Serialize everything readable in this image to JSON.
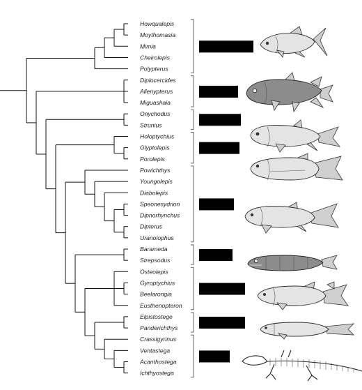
{
  "taxa": [
    "Howqualepis",
    "Moythomasia",
    "Mimia",
    "Cheirolepis",
    "Polypterus",
    "Diplocercides",
    "Allenypterus",
    "Miguashaia",
    "Onychodus",
    "Strunius",
    "Holoptychius",
    "Glyptolepis",
    "Porolepis",
    "Powichthys",
    "Youngolepis",
    "Diabolepis",
    "Speonesydrion",
    "Dipnorhynchus",
    "Dipterus",
    "Uranolophus",
    "Barameda",
    "Strepsodus",
    "Osteolepis",
    "Gyroptychius",
    "Beelarongia",
    "Eusthenopteron",
    "Elpistostege",
    "Panderichthys",
    "Crassigyrinus",
    "Ventastega",
    "Acanthostega",
    "Ichthyostega"
  ],
  "groups": [
    {
      "from": 0,
      "to": 4,
      "label": "",
      "icon": "actinopterygian-fish-icon"
    },
    {
      "from": 5,
      "to": 7,
      "label": "",
      "icon": "coelacanth-fish-icon"
    },
    {
      "from": 8,
      "to": 9,
      "label": "",
      "icon": "onychodont-fish-icon"
    },
    {
      "from": 10,
      "to": 12,
      "label": "",
      "icon": "porolepiform-fish-icon"
    },
    {
      "from": 13,
      "to": 19,
      "label": "",
      "icon": "lungfish-icon"
    },
    {
      "from": 20,
      "to": 21,
      "label": "",
      "icon": "rhizodont-fish-icon"
    },
    {
      "from": 22,
      "to": 25,
      "label": "",
      "icon": "osteolepiform-fish-icon"
    },
    {
      "from": 26,
      "to": 27,
      "label": "",
      "icon": "elpistostegid-fish-icon"
    },
    {
      "from": 28,
      "to": 31,
      "label": "",
      "icon": "early-tetrapod-skeleton-icon"
    }
  ],
  "tree": {
    "c": [
      {
        "c": [
          {
            "c": [
              {
                "c": [
                  {
                    "c": [
                      0,
                      1
                    ]
                  },
                  2
                ]
              },
              3
            ]
          },
          4
        ]
      },
      {
        "c": [
          {
            "c": [
              5,
              6,
              7
            ]
          },
          {
            "c": [
              {
                "c": [
                  8,
                  9
                ]
              },
              {
                "c": [
                  {
                    "c": [
                      10,
                      {
                        "c": [
                          11,
                          12
                        ]
                      }
                    ]
                  },
                  {
                    "c": [
                      {
                        "c": [
                          13,
                          {
                            "c": [
                              14,
                              {
                                "c": [
                                  15,
                                  {
                                    "c": [
                                      {
                                        "c": [
                                          16,
                                          17
                                        ]
                                      },
                                      {
                                        "c": [
                                          18,
                                          19
                                        ]
                                      }
                                    ]
                                  }
                                ]
                              }
                            ]
                          }
                        ]
                      },
                      {
                        "c": [
                          {
                            "c": [
                              20,
                              21
                            ]
                          },
                          {
                            "c": [
                              {
                                "c": [
                                  22,
                                  {
                                    "c": [
                                      23,
                                      24
                                    ]
                                  },
                                  25
                                ]
                              },
                              {
                                "c": [
                                  {
                                    "c": [
                                      26,
                                      27
                                    ]
                                  },
                                  {
                                    "c": [
                                      28,
                                      {
                                        "c": [
                                          29,
                                          {
                                            "c": [
                                              30,
                                              31
                                            ]
                                          }
                                        ]
                                      }
                                    ]
                                  }
                                ]
                              }
                            ]
                          }
                        ]
                      }
                    ]
                  }
                ]
              }
            ]
          }
        ]
      }
    ]
  }
}
